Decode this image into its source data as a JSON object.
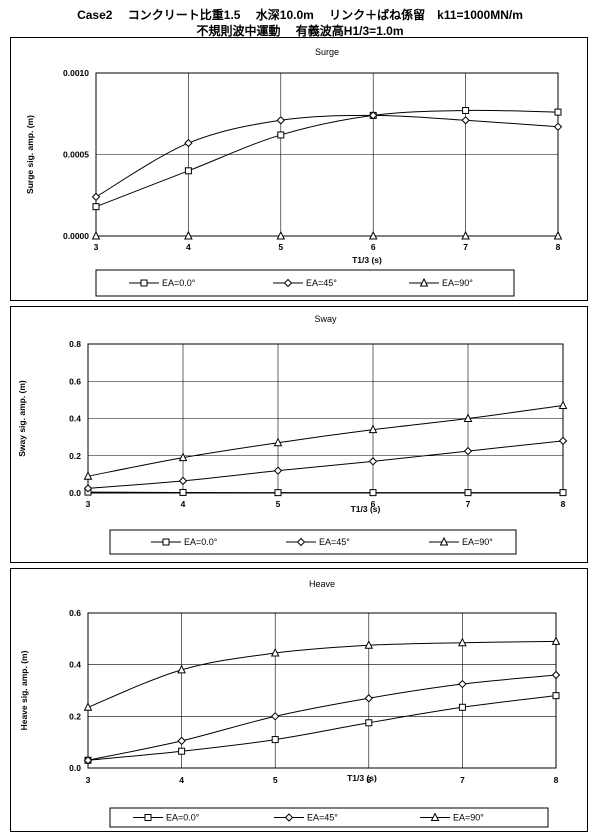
{
  "header": {
    "line1": "Case2 　コンクリート比重1.5　 水深10.0m　 リンク＋ばね係留　k11=1000MN/m",
    "line2": "不規則波中運動　 有義波高H1/3=1.0m"
  },
  "chart_data": [
    {
      "type": "line",
      "title": "Surge",
      "xlabel": "T1/3 (s)",
      "ylabel": "Surge sig. amp. (m)",
      "x": [
        3,
        4,
        5,
        6,
        7,
        8
      ],
      "xlim": [
        3,
        8
      ],
      "ylim": [
        0,
        0.001
      ],
      "yticks": [
        "0.0000",
        "0.0005",
        "0.0010"
      ],
      "ytick_values": [
        0,
        0.0005,
        0.001
      ],
      "xticks": [
        "3",
        "4",
        "5",
        "6",
        "7",
        "8"
      ],
      "grid": true,
      "legend_position": "bottom",
      "series": [
        {
          "name": "EA=0.0°",
          "marker": "square",
          "values": [
            0.00018,
            0.0004,
            0.00062,
            0.00074,
            0.00077,
            0.00076
          ]
        },
        {
          "name": "EA=45°",
          "marker": "diamond",
          "values": [
            0.00024,
            0.00057,
            0.00071,
            0.00074,
            0.00071,
            0.00067
          ]
        },
        {
          "name": "EA=90°",
          "marker": "triangle",
          "values": [
            0,
            0,
            0,
            0,
            0,
            0
          ]
        }
      ]
    },
    {
      "type": "line",
      "title": "Sway",
      "xlabel": "T1/3 (s)",
      "ylabel": "Sway sig. amp. (m)",
      "x": [
        3,
        4,
        5,
        6,
        7,
        8
      ],
      "xlim": [
        3,
        8
      ],
      "ylim": [
        0,
        0.8
      ],
      "yticks": [
        "0.0",
        "0.2",
        "0.4",
        "0.6",
        "0.8"
      ],
      "ytick_values": [
        0,
        0.2,
        0.4,
        0.6,
        0.8
      ],
      "xticks": [
        "3",
        "4",
        "5",
        "6",
        "7",
        "8"
      ],
      "grid": true,
      "legend_position": "bottom",
      "series": [
        {
          "name": "EA=0.0°",
          "marker": "square",
          "values": [
            0.005,
            0.003,
            0.002,
            0.002,
            0.002,
            0.002
          ]
        },
        {
          "name": "EA=45°",
          "marker": "diamond",
          "values": [
            0.025,
            0.065,
            0.12,
            0.17,
            0.225,
            0.28
          ]
        },
        {
          "name": "EA=90°",
          "marker": "triangle",
          "values": [
            0.09,
            0.19,
            0.27,
            0.34,
            0.4,
            0.47
          ]
        }
      ]
    },
    {
      "type": "line",
      "title": "Heave",
      "xlabel": "T1/3 (s)",
      "ylabel": "Heave sig. amp. (m)",
      "x": [
        3,
        4,
        5,
        6,
        7,
        8
      ],
      "xlim": [
        3,
        8
      ],
      "ylim": [
        0,
        0.6
      ],
      "yticks": [
        "0.0",
        "0.2",
        "0.4",
        "0.6"
      ],
      "ytick_values": [
        0,
        0.2,
        0.4,
        0.6
      ],
      "xticks": [
        "3",
        "4",
        "5",
        "6",
        "7",
        "8"
      ],
      "grid": true,
      "legend_position": "bottom",
      "series": [
        {
          "name": "EA=0.0°",
          "marker": "square",
          "values": [
            0.03,
            0.065,
            0.11,
            0.175,
            0.235,
            0.28
          ]
        },
        {
          "name": "EA=45°",
          "marker": "diamond",
          "values": [
            0.03,
            0.105,
            0.2,
            0.27,
            0.325,
            0.36
          ]
        },
        {
          "name": "EA=90°",
          "marker": "triangle",
          "values": [
            0.235,
            0.38,
            0.445,
            0.475,
            0.485,
            0.49
          ]
        }
      ]
    }
  ]
}
